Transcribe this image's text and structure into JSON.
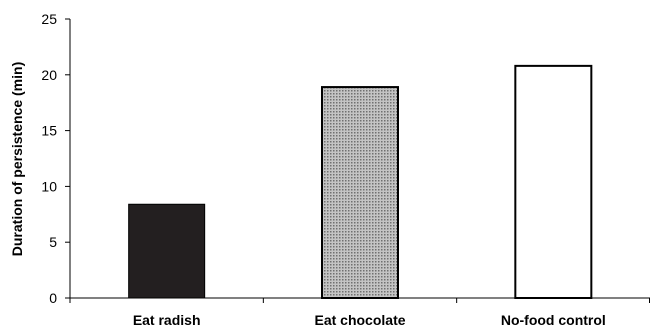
{
  "chart_data": {
    "type": "bar",
    "title": "",
    "xlabel": "",
    "ylabel": "Duration of persistence (min)",
    "ylim": [
      0,
      25
    ],
    "yticks": [
      0,
      5,
      10,
      15,
      20,
      25
    ],
    "grid": false,
    "categories": [
      "Eat radish",
      "Eat chocolate",
      "No-food control"
    ],
    "values": [
      8.4,
      18.9,
      20.8
    ],
    "colors": [
      "#231f20",
      "#a8a8a8",
      "#ffffff"
    ],
    "fills": [
      "solid-black",
      "dotted-gray",
      "white-outline"
    ]
  }
}
